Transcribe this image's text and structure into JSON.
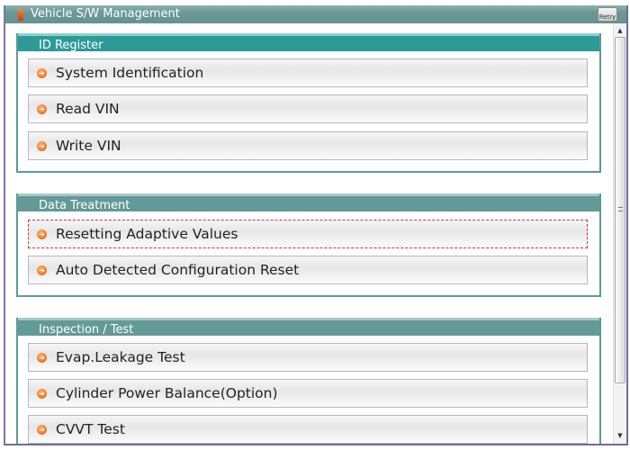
{
  "window": {
    "title": "Vehicle S/W Management",
    "retry_label": "Retry"
  },
  "groups": [
    {
      "title": "ID Register",
      "items": [
        "System Identification",
        "Read VIN",
        "Write VIN"
      ]
    },
    {
      "title": "Data Treatment",
      "items": [
        "Resetting Adaptive Values",
        "Auto Detected Configuration Reset"
      ],
      "focused_item": "Resetting Adaptive Values"
    },
    {
      "title": "Inspection / Test",
      "items": [
        "Evap.Leakage Test",
        "Cylinder Power Balance(Option)",
        "CVVT Test"
      ]
    }
  ],
  "colors": {
    "title_bar": "#6a9896",
    "active_group_header": "#2e9a96",
    "group_header": "#639a98",
    "focus_outline": "#e03030",
    "item_arrow": "#e85a10"
  }
}
